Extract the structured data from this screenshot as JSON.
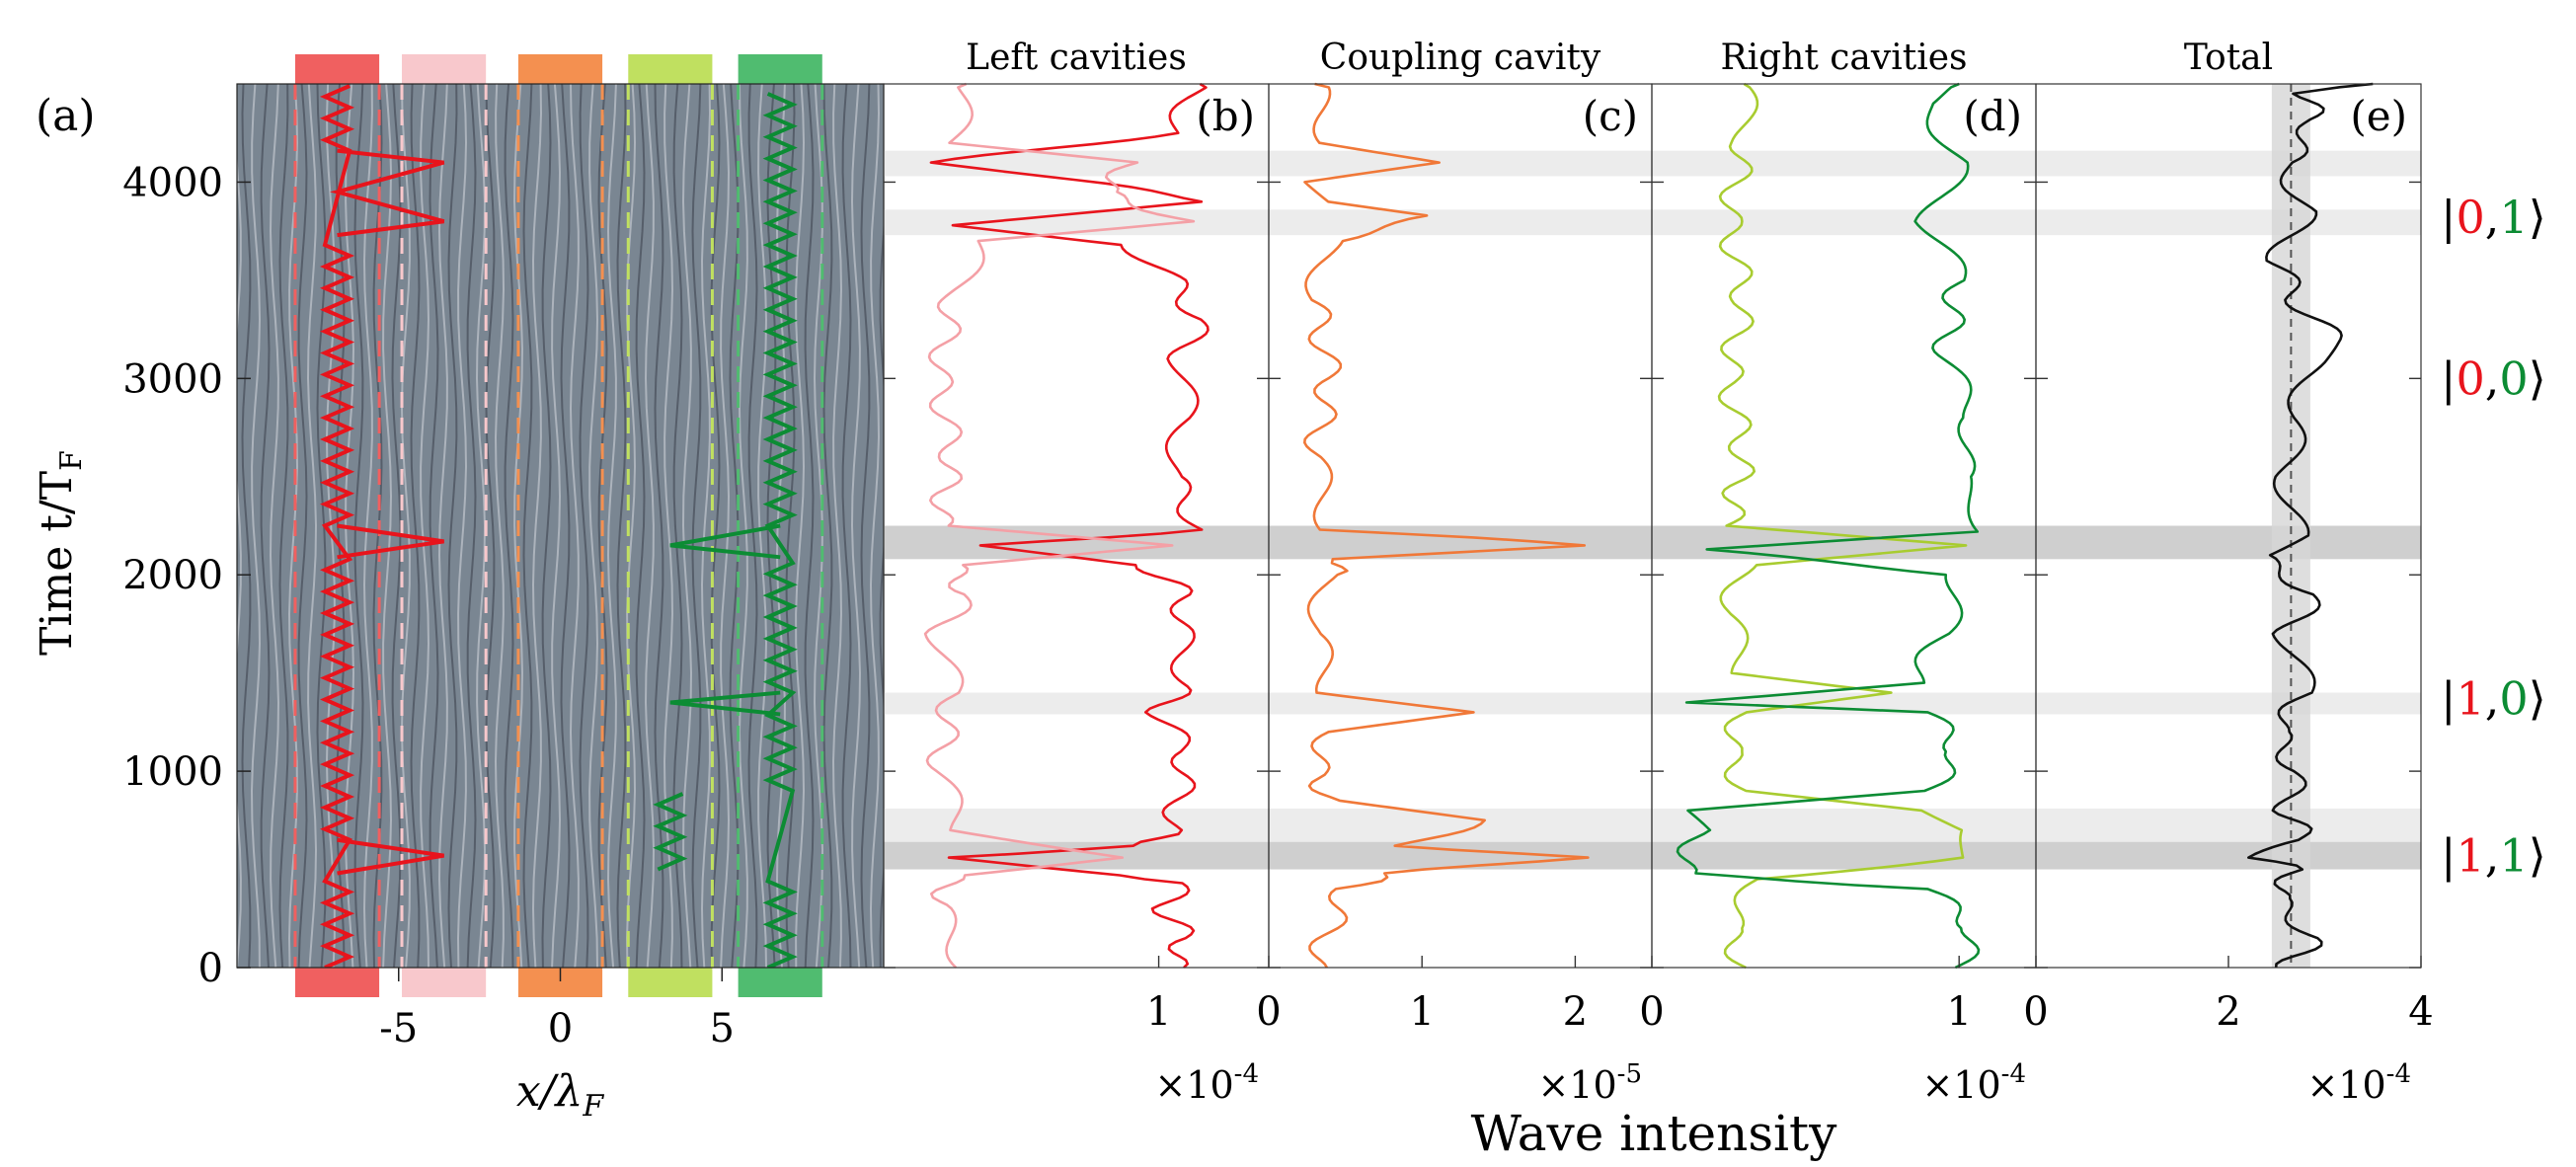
{
  "figure": {
    "colors": {
      "left_cavity_1": "#e8141c",
      "left_cavity_2": "#f4a0a6",
      "coupling_cavity": "#f07838",
      "right_cavity_1": "#a8cc30",
      "right_cavity_2": "#0c8c34",
      "total": "#111111",
      "band_light": "#ececec",
      "band_dark": "#cfcfcf",
      "background_wave": "#7a8692"
    },
    "shared_xlabel": "Wave intensity",
    "state_labels": [
      {
        "text_open": "|",
        "a": "0",
        "sep": ",",
        "b": "1",
        "text_close": "⟩",
        "t": 3820
      },
      {
        "text_open": "|",
        "a": "0",
        "sep": ",",
        "b": "0",
        "text_close": "⟩",
        "t": 3000
      },
      {
        "text_open": "|",
        "a": "1",
        "sep": ",",
        "b": "0",
        "text_close": "⟩",
        "t": 1370
      },
      {
        "text_open": "|",
        "a": "1",
        "sep": ",",
        "b": "1",
        "text_close": "⟩",
        "t": 570
      }
    ]
  },
  "chart_data": [
    {
      "panel": "(a)",
      "type": "heatmap",
      "xlabel": "x/λ",
      "xlabel_sub": "F",
      "ylabel": "Time t/T",
      "ylabel_sub": "F",
      "xlim": [
        -10,
        10
      ],
      "ylim": [
        0,
        4500
      ],
      "xticks": [
        -5,
        0,
        5
      ],
      "xtick_labels": [
        "-5",
        "0",
        "5"
      ],
      "yticks": [
        0,
        1000,
        2000,
        3000,
        4000
      ],
      "ytick_labels": [
        "0",
        "1000",
        "2000",
        "3000",
        "4000"
      ],
      "cavities": [
        {
          "name": "left outer",
          "x_range": [
            -8.2,
            -5.6
          ],
          "color": "#f06060"
        },
        {
          "name": "left inner",
          "x_range": [
            -4.9,
            -2.3
          ],
          "color": "#f8c8cc"
        },
        {
          "name": "coupling",
          "x_range": [
            -1.3,
            1.3
          ],
          "color": "#f49050"
        },
        {
          "name": "right inner",
          "x_range": [
            2.1,
            4.7
          ],
          "color": "#c0e060"
        },
        {
          "name": "right outer",
          "x_range": [
            5.5,
            8.1
          ],
          "color": "#50bc70"
        }
      ]
    },
    {
      "panel": "(b)",
      "title": "Left cavities",
      "type": "line",
      "xlim": [
        0,
        1.4
      ],
      "xticks": [
        1
      ],
      "xtick_labels": [
        "1"
      ],
      "multiplier": "×10",
      "multiplier_exp": "-4",
      "series": [
        {
          "color": "#e8141c",
          "points": [
            [
              1.05,
              0
            ],
            [
              1.1,
              150
            ],
            [
              1.02,
              300
            ],
            [
              1.08,
              430
            ],
            [
              0.9,
              470
            ],
            [
              0.2,
              560
            ],
            [
              0.95,
              620
            ],
            [
              1.05,
              700
            ],
            [
              1.08,
              900
            ],
            [
              1.1,
              1100
            ],
            [
              1.0,
              1300
            ],
            [
              1.1,
              1450
            ],
            [
              1.08,
              1700
            ],
            [
              1.1,
              1900
            ],
            [
              0.95,
              2050
            ],
            [
              0.4,
              2150
            ],
            [
              1.15,
              2230
            ],
            [
              1.05,
              2500
            ],
            [
              1.1,
              2800
            ],
            [
              1.08,
              3100
            ],
            [
              1.15,
              3300
            ],
            [
              1.05,
              3500
            ],
            [
              0.9,
              3680
            ],
            [
              0.3,
              3780
            ],
            [
              1.2,
              3900
            ],
            [
              0.5,
              4050
            ],
            [
              0.2,
              4100
            ],
            [
              1.05,
              4250
            ],
            [
              1.15,
              4500
            ]
          ]
        },
        {
          "color": "#f4a0a6",
          "points": [
            [
              0.3,
              0
            ],
            [
              0.2,
              300
            ],
            [
              0.25,
              470
            ],
            [
              0.9,
              560
            ],
            [
              0.28,
              700
            ],
            [
              0.2,
              1000
            ],
            [
              0.25,
              1400
            ],
            [
              0.2,
              1700
            ],
            [
              0.3,
              1900
            ],
            [
              0.25,
              2050
            ],
            [
              1.0,
              2150
            ],
            [
              0.2,
              2250
            ],
            [
              0.25,
              2600
            ],
            [
              0.2,
              3000
            ],
            [
              0.25,
              3400
            ],
            [
              0.35,
              3700
            ],
            [
              1.1,
              3800
            ],
            [
              0.8,
              3950
            ],
            [
              0.9,
              4100
            ],
            [
              0.25,
              4200
            ],
            [
              0.3,
              4500
            ]
          ]
        }
      ]
    },
    {
      "panel": "(c)",
      "title": "Coupling cavity",
      "type": "line",
      "xlim": [
        0,
        2.5
      ],
      "xticks": [
        0,
        1,
        2
      ],
      "xtick_labels": [
        "0",
        "1",
        "2"
      ],
      "multiplier": "×10",
      "multiplier_exp": "-5",
      "series": [
        {
          "color": "#f07838",
          "points": [
            [
              0.3,
              0
            ],
            [
              0.4,
              200
            ],
            [
              0.5,
              400
            ],
            [
              0.8,
              480
            ],
            [
              2.0,
              560
            ],
            [
              0.9,
              620
            ],
            [
              1.4,
              750
            ],
            [
              0.4,
              850
            ],
            [
              0.3,
              1000
            ],
            [
              0.4,
              1200
            ],
            [
              1.4,
              1300
            ],
            [
              0.4,
              1400
            ],
            [
              0.3,
              1700
            ],
            [
              0.4,
              2000
            ],
            [
              0.5,
              2080
            ],
            [
              2.1,
              2150
            ],
            [
              0.4,
              2230
            ],
            [
              0.3,
              2600
            ],
            [
              0.4,
              3000
            ],
            [
              0.3,
              3400
            ],
            [
              0.4,
              3700
            ],
            [
              1.1,
              3830
            ],
            [
              0.4,
              3900
            ],
            [
              0.3,
              4000
            ],
            [
              1.2,
              4100
            ],
            [
              0.4,
              4200
            ],
            [
              0.3,
              4500
            ]
          ]
        }
      ]
    },
    {
      "panel": "(d)",
      "title": "Right cavities",
      "type": "line",
      "xlim": [
        0,
        1.25
      ],
      "xticks": [
        0,
        1
      ],
      "xtick_labels": [
        "0",
        "1"
      ],
      "multiplier": "×10",
      "multiplier_exp": "-4",
      "series": [
        {
          "color": "#a8cc30",
          "points": [
            [
              0.3,
              0
            ],
            [
              0.25,
              200
            ],
            [
              0.35,
              450
            ],
            [
              1.0,
              560
            ],
            [
              1.05,
              700
            ],
            [
              0.9,
              800
            ],
            [
              0.3,
              900
            ],
            [
              0.25,
              1100
            ],
            [
              0.3,
              1300
            ],
            [
              0.8,
              1400
            ],
            [
              0.3,
              1500
            ],
            [
              0.25,
              1800
            ],
            [
              0.3,
              2050
            ],
            [
              1.0,
              2150
            ],
            [
              0.25,
              2250
            ],
            [
              0.3,
              2600
            ],
            [
              0.25,
              3000
            ],
            [
              0.3,
              3400
            ],
            [
              0.25,
              3800
            ],
            [
              0.3,
              4200
            ],
            [
              0.3,
              4500
            ]
          ]
        },
        {
          "color": "#0c8c34",
          "points": [
            [
              1.0,
              0
            ],
            [
              1.05,
              200
            ],
            [
              0.9,
              400
            ],
            [
              0.1,
              480
            ],
            [
              0.15,
              700
            ],
            [
              0.1,
              800
            ],
            [
              0.9,
              900
            ],
            [
              1.0,
              1100
            ],
            [
              0.9,
              1300
            ],
            [
              0.1,
              1350
            ],
            [
              0.85,
              1450
            ],
            [
              0.95,
              1700
            ],
            [
              1.0,
              2000
            ],
            [
              0.15,
              2130
            ],
            [
              1.1,
              2220
            ],
            [
              1.0,
              2500
            ],
            [
              1.05,
              2800
            ],
            [
              0.95,
              3100
            ],
            [
              1.0,
              3500
            ],
            [
              0.9,
              3800
            ],
            [
              1.0,
              4100
            ],
            [
              0.9,
              4400
            ],
            [
              1.0,
              4500
            ]
          ]
        }
      ]
    },
    {
      "panel": "(e)",
      "title": "Total",
      "type": "line",
      "xlim": [
        0,
        4
      ],
      "xticks": [
        0,
        2,
        4
      ],
      "xtick_labels": [
        "0",
        "2",
        "4"
      ],
      "multiplier": "×10",
      "multiplier_exp": "-4",
      "mean_line": 2.65,
      "shaded_x_range": [
        2.45,
        2.85
      ],
      "series": [
        {
          "color": "#111111",
          "points": [
            [
              2.6,
              0
            ],
            [
              2.9,
              150
            ],
            [
              2.5,
              350
            ],
            [
              2.7,
              500
            ],
            [
              2.3,
              560
            ],
            [
              2.8,
              650
            ],
            [
              2.6,
              800
            ],
            [
              2.7,
              1000
            ],
            [
              2.5,
              1200
            ],
            [
              2.8,
              1400
            ],
            [
              2.6,
              1700
            ],
            [
              2.9,
              1900
            ],
            [
              2.3,
              2100
            ],
            [
              2.7,
              2200
            ],
            [
              2.6,
              2500
            ],
            [
              2.7,
              2800
            ],
            [
              2.9,
              3100
            ],
            [
              3.1,
              3200
            ],
            [
              2.7,
              3400
            ],
            [
              2.5,
              3600
            ],
            [
              2.8,
              3850
            ],
            [
              2.6,
              4100
            ],
            [
              2.9,
              4300
            ],
            [
              2.8,
              4450
            ],
            [
              3.5,
              4500
            ]
          ]
        }
      ]
    }
  ],
  "highlight_bands": [
    {
      "t_range": [
        4030,
        4160
      ],
      "shade": "light"
    },
    {
      "t_range": [
        3730,
        3860
      ],
      "shade": "light"
    },
    {
      "t_range": [
        2080,
        2250
      ],
      "shade": "dark"
    },
    {
      "t_range": [
        1290,
        1400
      ],
      "shade": "light"
    },
    {
      "t_range": [
        640,
        810
      ],
      "shade": "light"
    },
    {
      "t_range": [
        500,
        640
      ],
      "shade": "dark"
    }
  ]
}
